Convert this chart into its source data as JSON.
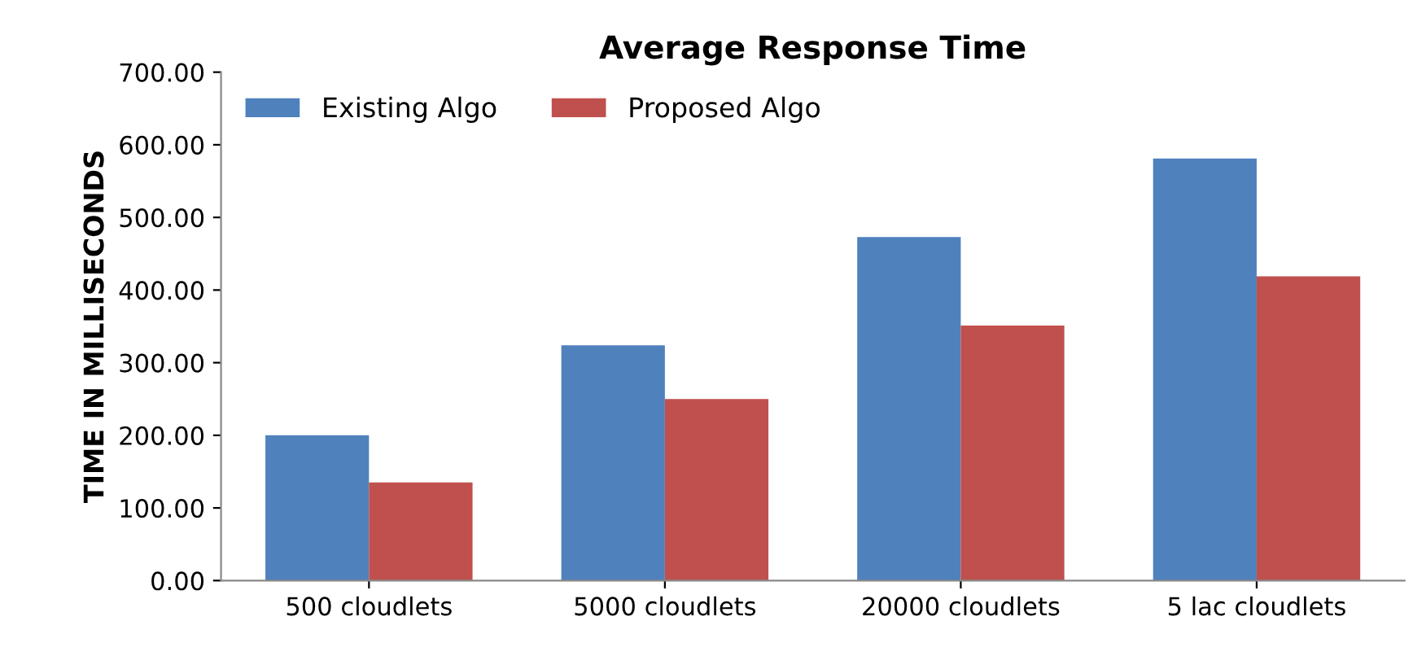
{
  "chart_data": {
    "type": "bar",
    "title": "Average Response Time",
    "ylabel": "TIME IN MILLISECONDS",
    "categories": [
      "500 cloudlets",
      "5000 cloudlets",
      "20000 cloudlets",
      "5 lac cloudlets"
    ],
    "series": [
      {
        "name": "Existing Algo",
        "color": "#4f81bd",
        "values": [
          200,
          324,
          473,
          581
        ]
      },
      {
        "name": "Proposed Algo",
        "color": "#c0504d",
        "values": [
          135,
          250,
          351,
          419
        ]
      }
    ],
    "ylim": [
      0,
      700
    ],
    "yticks": [
      {
        "value": 0,
        "label": "0.00"
      },
      {
        "value": 100,
        "label": "100.00"
      },
      {
        "value": 200,
        "label": "200.00"
      },
      {
        "value": 300,
        "label": "300.00"
      },
      {
        "value": 400,
        "label": "400.00"
      },
      {
        "value": 500,
        "label": "500.00"
      },
      {
        "value": 600,
        "label": "600.00"
      },
      {
        "value": 700,
        "label": "700.00"
      }
    ],
    "legend": "top left",
    "grid": false
  }
}
